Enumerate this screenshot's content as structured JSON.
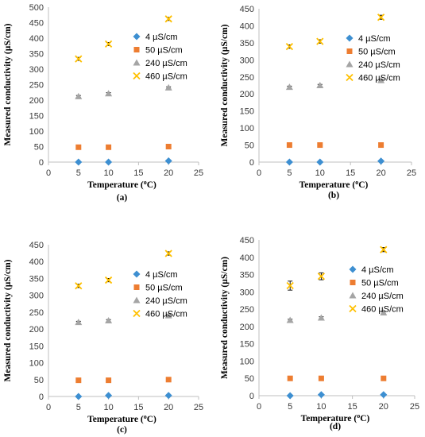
{
  "figure": {
    "charts": [
      {
        "id": "a",
        "panel_label": "(a)",
        "type": "scatter",
        "xlabel_main": "Temperature (",
        "xlabel_sup": "o",
        "xlabel_end": "C)",
        "ylabel": "Measured conductivity (µS/cm)",
        "xlim": [
          0,
          25
        ],
        "ylim": [
          0,
          500
        ],
        "xticks": [
          0,
          5,
          10,
          15,
          20,
          25
        ],
        "yticks": [
          0,
          50,
          100,
          150,
          200,
          250,
          300,
          350,
          400,
          450,
          500
        ],
        "grid": false,
        "legend_placement": "top-right",
        "series": [
          {
            "name": "4 µS/cm",
            "marker": "diamond",
            "color": "#3d8fd1",
            "x": [
              5,
              10,
              20
            ],
            "y": [
              0,
              0,
              4
            ],
            "err": [
              0,
              0,
              0
            ]
          },
          {
            "name": "50 µS/cm",
            "marker": "square",
            "color": "#ed7d31",
            "x": [
              5,
              10,
              20
            ],
            "y": [
              48,
              48,
              50
            ],
            "err": [
              0,
              0,
              0
            ]
          },
          {
            "name": "240 µS/cm",
            "marker": "triangle",
            "color": "#a5a5a5",
            "x": [
              5,
              10,
              20
            ],
            "y": [
              212,
              221,
              240
            ],
            "err": [
              3,
              3,
              3
            ]
          },
          {
            "name": "460 µS/cm",
            "marker": "x",
            "color": "#ffc000",
            "x": [
              5,
              10,
              20
            ],
            "y": [
              333,
              381,
              462
            ],
            "err": [
              5,
              5,
              5
            ]
          }
        ]
      },
      {
        "id": "b",
        "panel_label": "(b)",
        "type": "scatter",
        "xlabel_main": "Temperature (",
        "xlabel_sup": "o",
        "xlabel_end": "C)",
        "ylabel": "Measured conductivity (µS/cm)",
        "xlim": [
          0,
          25
        ],
        "ylim": [
          0,
          450
        ],
        "xticks": [
          0,
          5,
          10,
          15,
          20,
          25
        ],
        "yticks": [
          0,
          50,
          100,
          150,
          200,
          250,
          300,
          350,
          400,
          450
        ],
        "grid": false,
        "legend_placement": "top-right",
        "series": [
          {
            "name": "4 µS/cm",
            "marker": "diamond",
            "color": "#3d8fd1",
            "x": [
              5,
              10,
              20
            ],
            "y": [
              0,
              0,
              3
            ],
            "err": [
              0,
              0,
              0
            ]
          },
          {
            "name": "50 µS/cm",
            "marker": "square",
            "color": "#ed7d31",
            "x": [
              5,
              10,
              20
            ],
            "y": [
              50,
              50,
              50
            ],
            "err": [
              0,
              0,
              0
            ]
          },
          {
            "name": "240 µS/cm",
            "marker": "triangle",
            "color": "#a5a5a5",
            "x": [
              5,
              10,
              20
            ],
            "y": [
              220,
              225,
              240
            ],
            "err": [
              3,
              3,
              3
            ]
          },
          {
            "name": "460 µS/cm",
            "marker": "x",
            "color": "#ffc000",
            "x": [
              5,
              10,
              20
            ],
            "y": [
              339,
              354,
              425
            ],
            "err": [
              5,
              5,
              6
            ]
          }
        ]
      },
      {
        "id": "c",
        "panel_label": "(c)",
        "type": "scatter",
        "xlabel_main": "Temperature (",
        "xlabel_sup": "o",
        "xlabel_end": "C)",
        "ylabel": "Measured conductivity (µS/cm)",
        "xlim": [
          0,
          25
        ],
        "ylim": [
          0,
          450
        ],
        "xticks": [
          0,
          5,
          10,
          15,
          20,
          25
        ],
        "yticks": [
          0,
          50,
          100,
          150,
          200,
          250,
          300,
          350,
          400,
          450
        ],
        "grid": false,
        "legend_placement": "top-right",
        "series": [
          {
            "name": "4 µS/cm",
            "marker": "diamond",
            "color": "#3d8fd1",
            "x": [
              5,
              10,
              20
            ],
            "y": [
              0,
              3,
              3
            ],
            "err": [
              0,
              0,
              0
            ]
          },
          {
            "name": "50 µS/cm",
            "marker": "square",
            "color": "#ed7d31",
            "x": [
              5,
              10,
              20
            ],
            "y": [
              48,
              48,
              50
            ],
            "err": [
              0,
              0,
              0
            ]
          },
          {
            "name": "240 µS/cm",
            "marker": "triangle",
            "color": "#a5a5a5",
            "x": [
              5,
              10,
              20
            ],
            "y": [
              220,
              225,
              240
            ],
            "err": [
              3,
              3,
              3
            ]
          },
          {
            "name": "460 µS/cm",
            "marker": "x",
            "color": "#ffc000",
            "x": [
              5,
              10,
              20
            ],
            "y": [
              328,
              345,
              424
            ],
            "err": [
              5,
              5,
              5
            ]
          }
        ]
      },
      {
        "id": "d",
        "panel_label": "(d)",
        "type": "scatter",
        "xlabel_main": "Temperature (",
        "xlabel_sup": "o",
        "xlabel_end": "C)",
        "ylabel": "Measured conductivity (µS/cm)",
        "xlim": [
          0,
          25
        ],
        "ylim": [
          0,
          450
        ],
        "xticks": [
          0,
          5,
          10,
          15,
          20,
          25
        ],
        "yticks": [
          0,
          50,
          100,
          150,
          200,
          250,
          300,
          350,
          400,
          450
        ],
        "grid": false,
        "legend_placement": "top-right",
        "series": [
          {
            "name": "4 µS/cm",
            "marker": "diamond",
            "color": "#3d8fd1",
            "x": [
              5,
              10,
              20
            ],
            "y": [
              0,
              3,
              3
            ],
            "err": [
              0,
              0,
              0
            ]
          },
          {
            "name": "50 µS/cm",
            "marker": "square",
            "color": "#ed7d31",
            "x": [
              5,
              10,
              20
            ],
            "y": [
              50,
              50,
              50
            ],
            "err": [
              0,
              0,
              0
            ]
          },
          {
            "name": "240 µS/cm",
            "marker": "triangle",
            "color": "#a5a5a5",
            "x": [
              5,
              10,
              20
            ],
            "y": [
              218,
              225,
              240
            ],
            "err": [
              3,
              3,
              3
            ]
          },
          {
            "name": "460 µS/cm",
            "marker": "x",
            "color": "#ffc000",
            "x": [
              5,
              10,
              20
            ],
            "y": [
              318,
              345,
              422
            ],
            "err": [
              13,
              10,
              6
            ]
          }
        ]
      }
    ]
  }
}
